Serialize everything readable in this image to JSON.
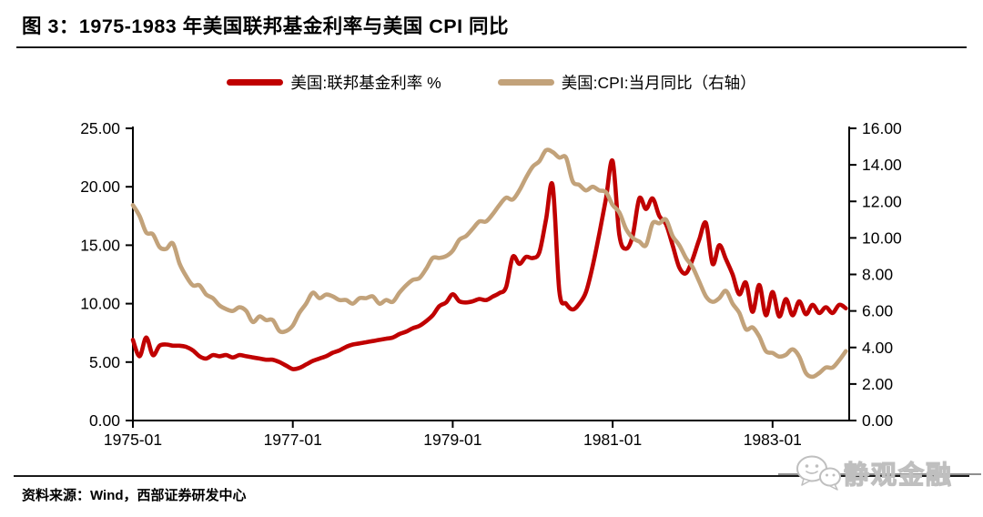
{
  "header": {
    "title": "图 3：1975-1983 年美国联邦基金利率与美国 CPI 同比"
  },
  "legend": [
    {
      "label": "美国:联邦基金利率 %",
      "color": "#C00000"
    },
    {
      "label": "美国:CPI:当月同比（右轴）",
      "color": "#C2A27A"
    }
  ],
  "footer": {
    "source": "资料来源：Wind，西部证券研发中心"
  },
  "watermark": {
    "text": "静观金融",
    "icon": "wechat-chat-bubbles"
  },
  "chart_data": {
    "type": "line",
    "x_start": "1975-01",
    "x_end": "1983-12",
    "x_frequency": "monthly",
    "x_tick_labels": [
      "1975-01",
      "1977-01",
      "1979-01",
      "1981-01",
      "1983-01"
    ],
    "x_tick_month_index": [
      0,
      24,
      48,
      72,
      96
    ],
    "grid": false,
    "legend_position": "top-center",
    "left_axis": {
      "min": 0,
      "max": 25,
      "step": 5,
      "tick_labels": [
        "0.00",
        "5.00",
        "10.00",
        "15.00",
        "20.00",
        "25.00"
      ]
    },
    "right_axis": {
      "min": 0,
      "max": 16,
      "step": 2,
      "tick_labels": [
        "0.00",
        "2.00",
        "4.00",
        "6.00",
        "8.00",
        "10.00",
        "12.00",
        "14.00",
        "16.00"
      ]
    },
    "series": [
      {
        "name": "美国:联邦基金利率 %",
        "axis": "left",
        "color": "#C00000",
        "values": [
          6.9,
          5.5,
          7.1,
          5.6,
          6.4,
          6.5,
          6.4,
          6.4,
          6.3,
          6.0,
          5.5,
          5.3,
          5.6,
          5.5,
          5.6,
          5.4,
          5.6,
          5.5,
          5.4,
          5.3,
          5.2,
          5.2,
          5.0,
          4.7,
          4.4,
          4.5,
          4.8,
          5.1,
          5.3,
          5.5,
          5.8,
          6.0,
          6.3,
          6.5,
          6.6,
          6.7,
          6.8,
          6.9,
          7.0,
          7.1,
          7.4,
          7.6,
          7.9,
          8.1,
          8.5,
          9.0,
          9.8,
          10.1,
          10.8,
          10.2,
          10.1,
          10.2,
          10.4,
          10.3,
          10.6,
          10.9,
          11.4,
          14.0,
          13.4,
          14.0,
          13.9,
          14.4,
          17.2,
          20.1,
          11.1,
          10.0,
          9.5,
          10.0,
          11.0,
          13.2,
          16.0,
          19.0,
          22.2,
          15.9,
          14.7,
          15.8,
          19.0,
          18.1,
          19.0,
          17.5,
          16.8,
          15.0,
          13.1,
          12.6,
          13.8,
          15.5,
          16.9,
          13.4,
          15.0,
          13.8,
          12.5,
          10.8,
          11.8,
          9.3,
          11.6,
          9.0,
          11.0,
          8.9,
          10.4,
          9.0,
          10.2,
          9.1,
          9.9,
          9.2,
          9.7,
          9.2,
          9.9,
          9.6
        ]
      },
      {
        "name": "美国:CPI:当月同比（右轴）",
        "axis": "right",
        "color": "#C2A27A",
        "values": [
          11.8,
          11.2,
          10.3,
          10.2,
          9.5,
          9.4,
          9.7,
          8.6,
          7.9,
          7.4,
          7.4,
          6.9,
          6.7,
          6.3,
          6.1,
          6.0,
          6.2,
          6.0,
          5.4,
          5.7,
          5.5,
          5.5,
          4.9,
          4.9,
          5.2,
          5.9,
          6.4,
          7.0,
          6.7,
          6.9,
          6.8,
          6.6,
          6.6,
          6.4,
          6.7,
          6.7,
          6.8,
          6.4,
          6.6,
          6.5,
          7.0,
          7.4,
          7.7,
          7.8,
          8.3,
          8.9,
          8.9,
          9.0,
          9.3,
          9.9,
          10.1,
          10.5,
          10.9,
          10.9,
          11.3,
          11.8,
          12.2,
          12.1,
          12.6,
          13.3,
          13.9,
          14.2,
          14.8,
          14.7,
          14.4,
          14.4,
          13.1,
          12.9,
          12.6,
          12.8,
          12.6,
          12.5,
          11.8,
          11.4,
          10.5,
          10.0,
          9.8,
          9.6,
          10.8,
          10.8,
          11.0,
          10.1,
          9.6,
          8.9,
          8.4,
          7.6,
          6.8,
          6.5,
          6.7,
          7.1,
          6.4,
          5.9,
          5.0,
          5.1,
          4.6,
          3.8,
          3.7,
          3.5,
          3.6,
          3.9,
          3.5,
          2.6,
          2.4,
          2.6,
          2.9,
          2.9,
          3.3,
          3.8
        ]
      }
    ]
  }
}
